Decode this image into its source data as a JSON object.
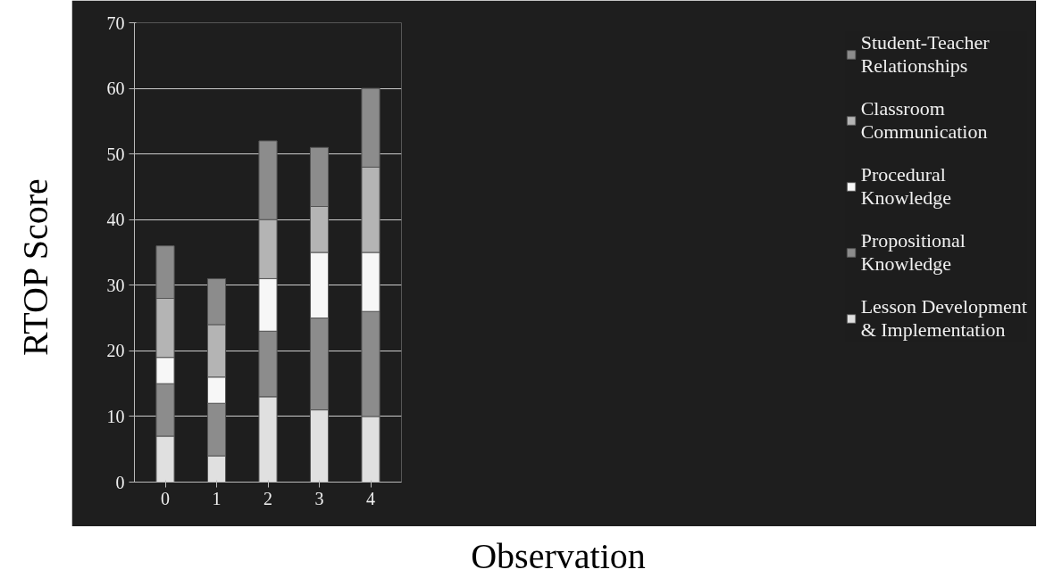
{
  "chart_data": {
    "type": "bar",
    "stacked": true,
    "xlabel": "Observation",
    "ylabel": "RTOP Score",
    "categories": [
      "0",
      "1",
      "2",
      "3",
      "4"
    ],
    "series": [
      {
        "name": "Lesson Development & Implementation",
        "color": "#e0e0e0",
        "values": [
          7,
          4,
          13,
          11,
          10
        ]
      },
      {
        "name": "Propositional Knowledge",
        "color": "#8c8c8c",
        "values": [
          8,
          8,
          10,
          14,
          16
        ]
      },
      {
        "name": "Procedural Knowledge",
        "color": "#f7f7f7",
        "values": [
          4,
          4,
          8,
          10,
          9
        ]
      },
      {
        "name": "Classroom Communication",
        "color": "#b4b4b4",
        "values": [
          9,
          8,
          9,
          7,
          13
        ]
      },
      {
        "name": "Student-Teacher Relationships",
        "color": "#8c8c8c",
        "values": [
          8,
          7,
          12,
          9,
          12
        ]
      }
    ],
    "ylim": [
      0,
      70
    ],
    "yticks": [
      0,
      10,
      20,
      30,
      40,
      50,
      60,
      70
    ],
    "grid": "y",
    "legend": "right"
  }
}
